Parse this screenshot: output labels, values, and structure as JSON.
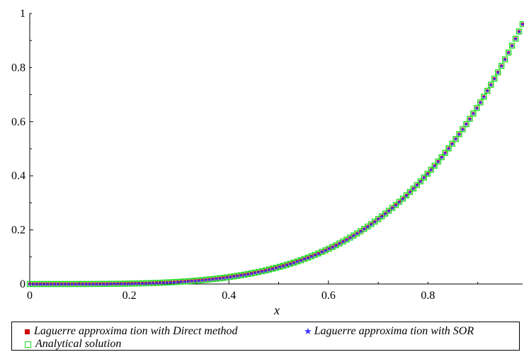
{
  "chart_data": {
    "type": "scatter",
    "title": "",
    "xlabel": "x",
    "ylabel": "",
    "xlim": [
      0,
      1
    ],
    "ylim": [
      0,
      1
    ],
    "x_ticks": [
      "0",
      "0.2",
      "0.4",
      "0.6",
      "0.8"
    ],
    "y_ticks": [
      "0",
      "0.2",
      "0.4",
      "0.6",
      "0.8",
      "1"
    ],
    "x_tick_values": [
      0,
      0.2,
      0.4,
      0.6,
      0.8
    ],
    "y_tick_values": [
      0,
      0.2,
      0.4,
      0.6,
      0.8,
      1
    ],
    "grid": false,
    "legend_position": "bottom",
    "function_note": "y = x^4",
    "x": [
      0,
      0.05,
      0.1,
      0.15,
      0.2,
      0.25,
      0.3,
      0.35,
      0.4,
      0.45,
      0.5,
      0.55,
      0.6,
      0.65,
      0.7,
      0.75,
      0.8,
      0.85,
      0.9,
      0.95,
      1.0
    ],
    "series": [
      {
        "name": "Laguerre approxima tion with Direct method",
        "marker": "filled-square",
        "color": "#e00000",
        "values": [
          0,
          1e-05,
          0.0001,
          0.0005,
          0.0016,
          0.0039,
          0.0081,
          0.015,
          0.0256,
          0.041,
          0.0625,
          0.0915,
          0.1296,
          0.1785,
          0.2401,
          0.3164,
          0.4096,
          0.522,
          0.6561,
          0.8145,
          1.0
        ]
      },
      {
        "name": "Laguerre approxima tion with SOR",
        "marker": "star",
        "color": "#3333ff",
        "values": [
          0,
          1e-05,
          0.0001,
          0.0005,
          0.0016,
          0.0039,
          0.0081,
          0.015,
          0.0256,
          0.041,
          0.0625,
          0.0915,
          0.1296,
          0.1785,
          0.2401,
          0.3164,
          0.4096,
          0.522,
          0.6561,
          0.8145,
          1.0
        ]
      },
      {
        "name": "Analytical solution",
        "marker": "open-square",
        "color": "#22dd22",
        "values": [
          0,
          1e-05,
          0.0001,
          0.0005,
          0.0016,
          0.0039,
          0.0081,
          0.015,
          0.0256,
          0.041,
          0.0625,
          0.0915,
          0.1296,
          0.1785,
          0.2401,
          0.3164,
          0.4096,
          0.522,
          0.6561,
          0.8145,
          1.0
        ]
      }
    ]
  }
}
